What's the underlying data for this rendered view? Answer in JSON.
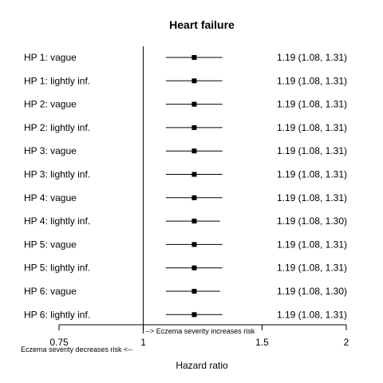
{
  "chart_data": {
    "type": "forest",
    "title": "Heart failure",
    "xlabel": "Hazard ratio",
    "x_scale": "log",
    "xlim": [
      0.75,
      2
    ],
    "x_ticks": [
      0.75,
      1,
      1.5,
      2
    ],
    "x_tick_labels": [
      "0.75",
      "1",
      "1.5",
      "2"
    ],
    "reference_line": 1,
    "annotation_right": "--> Eczema severity increases risk",
    "annotation_left": "Eczema severity decreases risk <--",
    "rows": [
      {
        "label": "HP 1: vague",
        "hr": 1.19,
        "lo": 1.08,
        "hi": 1.31,
        "text": "1.19 (1.08, 1.31)"
      },
      {
        "label": "HP 1: lightly inf.",
        "hr": 1.19,
        "lo": 1.08,
        "hi": 1.31,
        "text": "1.19 (1.08, 1.31)"
      },
      {
        "label": "HP 2: vague",
        "hr": 1.19,
        "lo": 1.08,
        "hi": 1.31,
        "text": "1.19 (1.08, 1.31)"
      },
      {
        "label": "HP 2: lightly inf.",
        "hr": 1.19,
        "lo": 1.08,
        "hi": 1.31,
        "text": "1.19 (1.08, 1.31)"
      },
      {
        "label": "HP 3: vague",
        "hr": 1.19,
        "lo": 1.08,
        "hi": 1.31,
        "text": "1.19 (1.08, 1.31)"
      },
      {
        "label": "HP 3: lightly inf.",
        "hr": 1.19,
        "lo": 1.08,
        "hi": 1.31,
        "text": "1.19 (1.08, 1.31)"
      },
      {
        "label": "HP 4: vague",
        "hr": 1.19,
        "lo": 1.08,
        "hi": 1.31,
        "text": "1.19 (1.08, 1.31)"
      },
      {
        "label": "HP 4: lightly inf.",
        "hr": 1.19,
        "lo": 1.08,
        "hi": 1.3,
        "text": "1.19 (1.08, 1.30)"
      },
      {
        "label": "HP 5: vague",
        "hr": 1.19,
        "lo": 1.08,
        "hi": 1.31,
        "text": "1.19 (1.08, 1.31)"
      },
      {
        "label": "HP 5: lightly inf.",
        "hr": 1.19,
        "lo": 1.08,
        "hi": 1.31,
        "text": "1.19 (1.08, 1.31)"
      },
      {
        "label": "HP 6: vague",
        "hr": 1.19,
        "lo": 1.08,
        "hi": 1.3,
        "text": "1.19 (1.08, 1.30)"
      },
      {
        "label": "HP 6: lightly inf.",
        "hr": 1.19,
        "lo": 1.08,
        "hi": 1.31,
        "text": "1.19 (1.08, 1.31)"
      }
    ]
  }
}
